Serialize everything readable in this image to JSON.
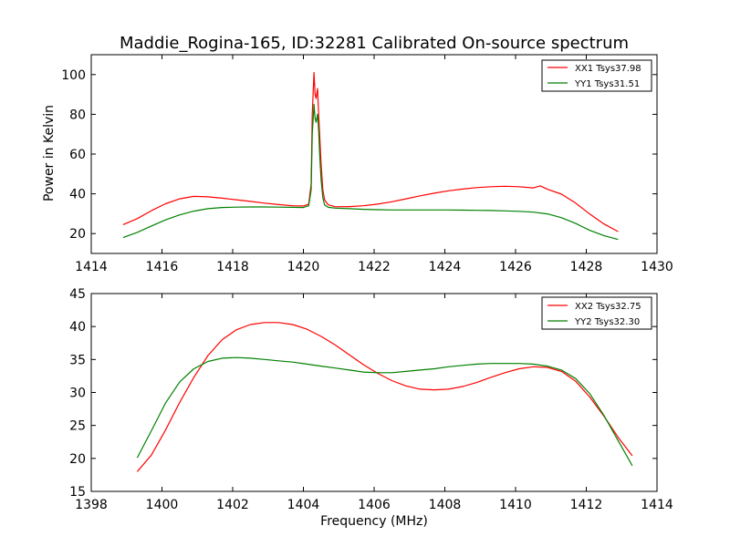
{
  "title": "Maddie_Rogina-165, ID:32281 Calibrated On-source spectrum",
  "chart_data": [
    {
      "type": "line",
      "ylabel": "Power in Kelvin",
      "xlabel": "",
      "xlim": [
        1414,
        1430
      ],
      "ylim": [
        10,
        110
      ],
      "xticks": [
        "1414",
        "1416",
        "1418",
        "1420",
        "1422",
        "1424",
        "1426",
        "1428",
        "1430"
      ],
      "yticks": [
        "20",
        "40",
        "60",
        "80",
        "100"
      ],
      "xtick_values": [
        1414,
        1416,
        1418,
        1420,
        1422,
        1424,
        1426,
        1428,
        1430
      ],
      "ytick_values": [
        20,
        40,
        60,
        80,
        100
      ],
      "legend_position": "top-right",
      "series": [
        {
          "name": "XX1 Tsys37.98",
          "color": "#ff0000",
          "x": [
            1414.9,
            1415.3,
            1415.7,
            1416.1,
            1416.5,
            1416.9,
            1417.3,
            1417.7,
            1418.1,
            1418.5,
            1418.9,
            1419.3,
            1419.7,
            1420.0,
            1420.15,
            1420.22,
            1420.25,
            1420.3,
            1420.33,
            1420.36,
            1420.4,
            1420.43,
            1420.46,
            1420.5,
            1420.55,
            1420.6,
            1420.7,
            1420.9,
            1421.3,
            1421.7,
            1422.1,
            1422.5,
            1422.9,
            1423.3,
            1423.7,
            1424.1,
            1424.5,
            1424.9,
            1425.3,
            1425.7,
            1426.1,
            1426.5,
            1426.7,
            1426.9,
            1427.3,
            1427.7,
            1428.1,
            1428.5,
            1428.9
          ],
          "values": [
            24.5,
            27.5,
            31.5,
            35.0,
            37.5,
            38.7,
            38.5,
            37.8,
            37.0,
            36.2,
            35.3,
            34.6,
            34.0,
            33.9,
            34.8,
            45,
            80,
            101,
            90,
            88,
            93,
            80,
            70,
            55,
            42,
            37,
            34.5,
            33.5,
            33.6,
            34.0,
            34.8,
            36.0,
            37.5,
            39.0,
            40.3,
            41.5,
            42.4,
            43.1,
            43.6,
            43.8,
            43.6,
            43.0,
            44.0,
            42.3,
            39.8,
            35.3,
            29.8,
            24.8,
            21.0
          ]
        },
        {
          "name": "YY1 Tsys31.51",
          "color": "#008000",
          "x": [
            1414.9,
            1415.3,
            1415.7,
            1416.1,
            1416.5,
            1416.9,
            1417.3,
            1417.7,
            1418.1,
            1418.5,
            1418.9,
            1419.3,
            1419.7,
            1420.0,
            1420.15,
            1420.22,
            1420.25,
            1420.3,
            1420.33,
            1420.36,
            1420.4,
            1420.43,
            1420.46,
            1420.5,
            1420.55,
            1420.6,
            1420.7,
            1420.9,
            1421.3,
            1421.7,
            1422.1,
            1422.5,
            1422.9,
            1423.3,
            1423.7,
            1424.1,
            1424.5,
            1424.9,
            1425.3,
            1425.7,
            1426.1,
            1426.5,
            1426.9,
            1427.3,
            1427.7,
            1428.1,
            1428.5,
            1428.9
          ],
          "values": [
            18.0,
            20.6,
            23.8,
            26.9,
            29.4,
            31.3,
            32.5,
            33.1,
            33.3,
            33.4,
            33.4,
            33.3,
            33.2,
            33.1,
            34.0,
            42,
            70,
            85,
            78,
            76,
            80,
            72,
            60,
            47,
            38,
            34.5,
            33.2,
            32.8,
            32.5,
            32.2,
            32.0,
            31.9,
            31.9,
            31.9,
            31.9,
            31.9,
            31.8,
            31.7,
            31.6,
            31.4,
            31.2,
            30.8,
            29.9,
            28.0,
            25.1,
            21.6,
            19.0,
            17.0
          ]
        }
      ]
    },
    {
      "type": "line",
      "ylabel": "",
      "xlabel": "Frequency (MHz)",
      "xlim": [
        1398,
        1414
      ],
      "ylim": [
        15,
        45
      ],
      "xticks": [
        "1398",
        "1400",
        "1402",
        "1404",
        "1406",
        "1408",
        "1410",
        "1412",
        "1414"
      ],
      "yticks": [
        "15",
        "20",
        "25",
        "30",
        "35",
        "40",
        "45"
      ],
      "xtick_values": [
        1398,
        1400,
        1402,
        1404,
        1406,
        1408,
        1410,
        1412,
        1414
      ],
      "ytick_values": [
        15,
        20,
        25,
        30,
        35,
        40,
        45
      ],
      "legend_position": "top-right",
      "series": [
        {
          "name": "XX2 Tsys32.75",
          "color": "#ff0000",
          "x": [
            1399.3,
            1399.7,
            1400.1,
            1400.5,
            1400.9,
            1401.3,
            1401.7,
            1402.1,
            1402.5,
            1402.9,
            1403.3,
            1403.7,
            1404.1,
            1404.5,
            1404.9,
            1405.3,
            1405.7,
            1406.1,
            1406.5,
            1406.9,
            1407.3,
            1407.7,
            1408.1,
            1408.5,
            1408.9,
            1409.3,
            1409.7,
            1410.1,
            1410.5,
            1410.9,
            1411.3,
            1411.7,
            1412.1,
            1412.5,
            1412.9,
            1413.3
          ],
          "values": [
            18.0,
            20.5,
            24.3,
            28.5,
            32.3,
            35.6,
            38.0,
            39.5,
            40.3,
            40.6,
            40.6,
            40.3,
            39.6,
            38.5,
            37.2,
            35.7,
            34.2,
            32.9,
            31.8,
            31.0,
            30.5,
            30.4,
            30.5,
            30.9,
            31.5,
            32.3,
            33.0,
            33.6,
            33.9,
            33.8,
            33.2,
            31.7,
            29.3,
            26.4,
            23.2,
            20.4
          ]
        },
        {
          "name": "YY2 Tsys32.30",
          "color": "#008000",
          "x": [
            1399.3,
            1399.7,
            1400.1,
            1400.5,
            1400.9,
            1401.3,
            1401.7,
            1402.1,
            1402.5,
            1402.9,
            1403.3,
            1403.7,
            1404.1,
            1404.5,
            1404.9,
            1405.3,
            1405.7,
            1406.1,
            1406.5,
            1406.9,
            1407.3,
            1407.7,
            1408.1,
            1408.5,
            1408.9,
            1409.3,
            1409.7,
            1410.1,
            1410.5,
            1410.9,
            1411.3,
            1411.7,
            1412.1,
            1412.5,
            1412.9,
            1413.3
          ],
          "values": [
            20.1,
            24.2,
            28.4,
            31.6,
            33.6,
            34.7,
            35.2,
            35.3,
            35.2,
            35.0,
            34.8,
            34.6,
            34.3,
            34.0,
            33.7,
            33.4,
            33.1,
            33.0,
            33.0,
            33.2,
            33.4,
            33.6,
            33.9,
            34.1,
            34.3,
            34.4,
            34.4,
            34.4,
            34.3,
            34.0,
            33.4,
            32.1,
            29.8,
            26.5,
            22.7,
            18.9
          ]
        }
      ]
    }
  ]
}
